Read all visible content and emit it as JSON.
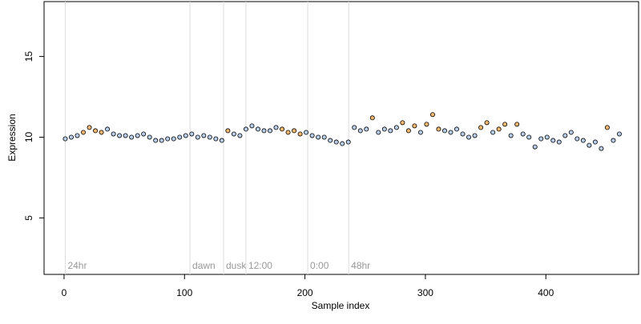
{
  "chart_data": {
    "type": "scatter",
    "xlabel": "Sample index",
    "ylabel": "Expression",
    "xlim": [
      -16.6,
      477
    ],
    "ylim": [
      1.5,
      18.4
    ],
    "xticks": [
      0,
      100,
      200,
      300,
      400
    ],
    "yticks": [
      5,
      10,
      15
    ],
    "annotations": [
      {
        "x": 1,
        "label": "24hr"
      },
      {
        "x": 104.5,
        "label": "dawn"
      },
      {
        "x": 132.4,
        "label": "dusk"
      },
      {
        "x": 151,
        "label": "12:00"
      },
      {
        "x": 202.3,
        "label": "0:00"
      },
      {
        "x": 236.3,
        "label": "48hr"
      }
    ],
    "series": [
      {
        "color": "#b8cde8",
        "x": [
          1,
          6,
          11,
          36,
          41,
          46,
          51,
          56,
          61,
          66,
          71,
          76,
          81,
          86,
          91,
          96,
          101,
          106,
          111,
          116,
          121,
          126,
          131,
          141,
          146,
          151,
          156,
          161,
          166,
          171,
          176,
          201,
          206,
          211,
          216,
          221,
          226,
          231,
          236,
          241,
          246,
          251,
          261,
          266,
          271,
          276,
          296,
          316,
          321,
          326,
          331,
          336,
          341,
          356,
          371,
          381,
          386,
          391,
          396,
          401,
          406,
          411,
          416,
          421,
          426,
          431,
          436,
          441,
          446,
          456,
          461
        ],
        "values": [
          9.9,
          10.0,
          10.1,
          10.5,
          10.2,
          10.1,
          10.1,
          10.0,
          10.1,
          10.2,
          10.0,
          9.8,
          9.8,
          9.9,
          9.9,
          10.0,
          10.1,
          10.2,
          10.0,
          10.1,
          10.0,
          9.9,
          9.8,
          10.2,
          10.1,
          10.5,
          10.7,
          10.5,
          10.4,
          10.4,
          10.6,
          10.3,
          10.1,
          10.0,
          10.0,
          9.8,
          9.7,
          9.6,
          9.7,
          10.6,
          10.4,
          10.5,
          10.3,
          10.5,
          10.4,
          10.6,
          10.3,
          10.4,
          10.3,
          10.5,
          10.2,
          10.0,
          10.1,
          10.3,
          10.1,
          10.2,
          10.0,
          9.4,
          9.9,
          10.0,
          9.8,
          9.7,
          10.1,
          10.3,
          9.9,
          9.8,
          9.5,
          9.7,
          9.3,
          9.8,
          10.2
        ]
      },
      {
        "color": "#f5b870",
        "x": [
          16,
          21,
          26,
          31,
          136,
          181,
          186,
          191,
          196,
          256,
          281,
          286,
          291,
          301,
          306,
          311,
          346,
          351,
          361,
          366,
          376,
          451
        ],
        "values": [
          10.3,
          10.6,
          10.4,
          10.3,
          10.4,
          10.5,
          10.3,
          10.4,
          10.2,
          11.2,
          10.9,
          10.4,
          10.7,
          10.8,
          11.4,
          10.5,
          10.6,
          10.9,
          10.5,
          10.8,
          10.8,
          10.6
        ]
      }
    ]
  }
}
